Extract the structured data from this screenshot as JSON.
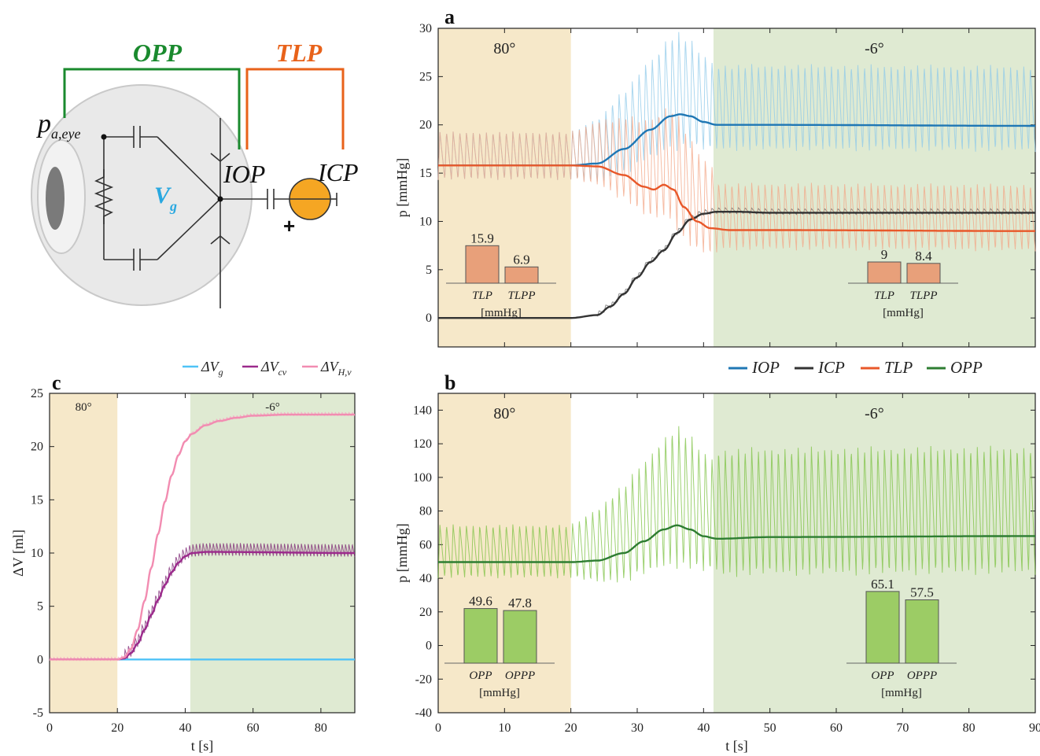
{
  "colors": {
    "iop": "#1f77b4",
    "icp": "#333333",
    "tlp": "#e8582a",
    "opp": "#2e7d32",
    "opp_osc": "#7cc242",
    "beige": "#f6e8c9",
    "green_bg": "#dfead2",
    "bar_orange": "#e8a07a",
    "bar_green": "#9ccc65",
    "dv_g": "#4fc3f7",
    "dv_cv": "#9c2a8c",
    "dv_hv": "#f28cb1"
  },
  "diagram": {
    "opp_label": "OPP",
    "tlp_label": "TLP",
    "pa_eye": "p",
    "pa_eye_sub": "a,eye",
    "vg": "V",
    "vg_sub": "g",
    "iop": "IOP",
    "icp": "ICP",
    "plus": "+"
  },
  "legend_ab": [
    {
      "label": "IOP",
      "color": "#1f77b4"
    },
    {
      "label": "ICP",
      "color": "#333333"
    },
    {
      "label": "TLP",
      "color": "#e8582a"
    },
    {
      "label": "OPP",
      "color": "#2e7d32"
    }
  ],
  "legend_c": [
    {
      "label": "ΔV",
      "sub": "g",
      "color": "#4fc3f7"
    },
    {
      "label": "ΔV",
      "sub": "cv",
      "color": "#9c2a8c"
    },
    {
      "label": "ΔV",
      "sub": "H,v",
      "color": "#f28cb1"
    }
  ],
  "chart_data": [
    {
      "id": "a",
      "type": "line",
      "panel_label": "a",
      "ylabel": "p [mmHg]",
      "xlim": [
        0,
        90
      ],
      "ylim": [
        -3,
        30
      ],
      "yticks": [
        0,
        5,
        10,
        15,
        20,
        25,
        30
      ],
      "regions": [
        {
          "label": "80°",
          "from": 0,
          "to": 20
        },
        {
          "label": "-6°",
          "from": 41.5,
          "to": 90
        }
      ],
      "series": [
        {
          "name": "IOP",
          "x": [
            0,
            20,
            24,
            28,
            32,
            35,
            36.5,
            38,
            40,
            42,
            50,
            90
          ],
          "values": [
            15.8,
            15.8,
            16.0,
            17.5,
            19.5,
            20.9,
            21.1,
            20.9,
            20.3,
            20.0,
            20.0,
            19.9
          ]
        },
        {
          "name": "ICP",
          "x": [
            0,
            20,
            24,
            26,
            28,
            30,
            32,
            34,
            36,
            38,
            40,
            42,
            45,
            50,
            90
          ],
          "values": [
            0,
            0,
            0.3,
            1.2,
            2.5,
            4.2,
            5.8,
            7.0,
            8.8,
            10.2,
            10.8,
            11.0,
            11.0,
            10.9,
            10.9
          ]
        },
        {
          "name": "TLP",
          "x": [
            0,
            20,
            24,
            28,
            31,
            32.5,
            34,
            35.5,
            37,
            39,
            41,
            44,
            50,
            90
          ],
          "values": [
            15.8,
            15.8,
            15.7,
            14.8,
            13.6,
            13.3,
            13.8,
            13.3,
            11.5,
            10.0,
            9.3,
            9.1,
            9.1,
            9.0
          ]
        }
      ],
      "bar_insets": [
        {
          "categories": [
            "TLP",
            "TLPP"
          ],
          "values": [
            15.9,
            6.9
          ],
          "unit": "[mmHg]"
        },
        {
          "categories": [
            "TLP",
            "TLPP"
          ],
          "values": [
            9,
            8.4
          ],
          "unit": "[mmHg]"
        }
      ]
    },
    {
      "id": "b",
      "type": "line",
      "panel_label": "b",
      "xlabel": "t [s]",
      "ylabel": "p [mmHg]",
      "xlim": [
        0,
        90
      ],
      "ylim": [
        -40,
        150
      ],
      "xticks": [
        0,
        10,
        20,
        30,
        40,
        50,
        60,
        70,
        80,
        90
      ],
      "yticks": [
        -40,
        -20,
        0,
        20,
        40,
        60,
        80,
        100,
        120,
        140
      ],
      "regions": [
        {
          "label": "80°",
          "from": 0,
          "to": 20
        },
        {
          "label": "-6°",
          "from": 41.5,
          "to": 90
        }
      ],
      "series": [
        {
          "name": "OPP",
          "x": [
            0,
            20,
            24,
            28,
            31,
            34,
            36,
            38,
            40,
            42,
            50,
            90
          ],
          "values": [
            49.6,
            49.6,
            50.5,
            55,
            62,
            69,
            71.5,
            69,
            65,
            63.5,
            64.5,
            65.1
          ]
        }
      ],
      "bar_insets": [
        {
          "categories": [
            "OPP",
            "OPPP"
          ],
          "values": [
            49.6,
            47.8
          ],
          "unit": "[mmHg]"
        },
        {
          "categories": [
            "OPP",
            "OPPP"
          ],
          "values": [
            65.1,
            57.5
          ],
          "unit": "[mmHg]"
        }
      ]
    },
    {
      "id": "c",
      "type": "line",
      "panel_label": "c",
      "xlabel": "t [s]",
      "ylabel": "ΔV [ml]",
      "xlim": [
        0,
        90
      ],
      "ylim": [
        -5,
        25
      ],
      "xticks": [
        0,
        20,
        40,
        60,
        80
      ],
      "yticks": [
        -5,
        0,
        5,
        10,
        15,
        20,
        25
      ],
      "regions": [
        {
          "label": "80°",
          "from": 0,
          "to": 20
        },
        {
          "label": "-6°",
          "from": 41.5,
          "to": 90
        }
      ],
      "series": [
        {
          "name": "ΔV_g",
          "x": [
            0,
            90
          ],
          "values": [
            0,
            0
          ]
        },
        {
          "name": "ΔV_cv",
          "x": [
            0,
            20,
            22,
            24,
            26,
            28,
            30,
            32,
            34,
            36,
            38,
            40,
            42,
            46,
            50,
            90
          ],
          "values": [
            0,
            0,
            0.1,
            0.6,
            1.5,
            2.8,
            4.2,
            5.6,
            7.0,
            8.2,
            9.1,
            9.7,
            10.0,
            10.1,
            10.1,
            10.0
          ]
        },
        {
          "name": "ΔV_H,v",
          "x": [
            0,
            20,
            22,
            24,
            26,
            28,
            30,
            32,
            34,
            36,
            38,
            40,
            42,
            46,
            50,
            55,
            60,
            70,
            90
          ],
          "values": [
            0,
            0,
            0.2,
            1.0,
            2.8,
            5.5,
            8.6,
            11.8,
            14.8,
            17.3,
            19.2,
            20.5,
            21.2,
            22.0,
            22.4,
            22.7,
            22.9,
            23.0,
            23.0
          ]
        }
      ]
    }
  ]
}
